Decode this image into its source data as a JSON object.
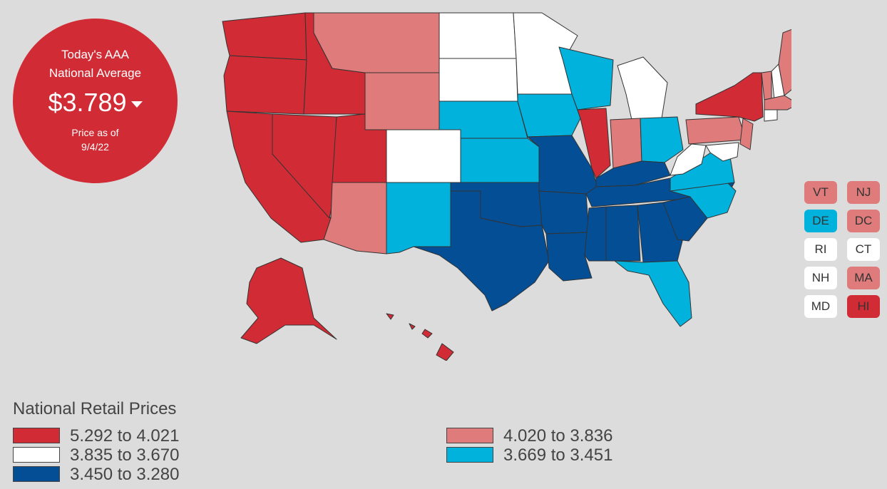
{
  "badge": {
    "title_line1": "Today's AAA",
    "title_line2": "National Average",
    "price": "$3.789",
    "asof_line1": "Price as of",
    "asof_line2": "9/4/22"
  },
  "colors": {
    "tier1": "#d12c35",
    "tier2": "#e07b7b",
    "tier3": "#ffffff",
    "tier4": "#00b2dc",
    "tier5": "#034e94"
  },
  "small_states": [
    {
      "abbr": "VT",
      "tier": "tier2"
    },
    {
      "abbr": "NJ",
      "tier": "tier2"
    },
    {
      "abbr": "DE",
      "tier": "tier4"
    },
    {
      "abbr": "DC",
      "tier": "tier2"
    },
    {
      "abbr": "RI",
      "tier": "tier3"
    },
    {
      "abbr": "CT",
      "tier": "tier3"
    },
    {
      "abbr": "NH",
      "tier": "tier3"
    },
    {
      "abbr": "MA",
      "tier": "tier2"
    },
    {
      "abbr": "MD",
      "tier": "tier3"
    },
    {
      "abbr": "HI",
      "tier": "tier1"
    }
  ],
  "legend": {
    "title": "National Retail Prices",
    "items": [
      {
        "label": "5.292 to 4.021",
        "tier": "tier1"
      },
      {
        "label": "4.020 to 3.836",
        "tier": "tier2"
      },
      {
        "label": "3.835 to 3.670",
        "tier": "tier3"
      },
      {
        "label": "3.669 to 3.451",
        "tier": "tier4"
      },
      {
        "label": "3.450 to 3.280",
        "tier": "tier5"
      }
    ]
  }
}
